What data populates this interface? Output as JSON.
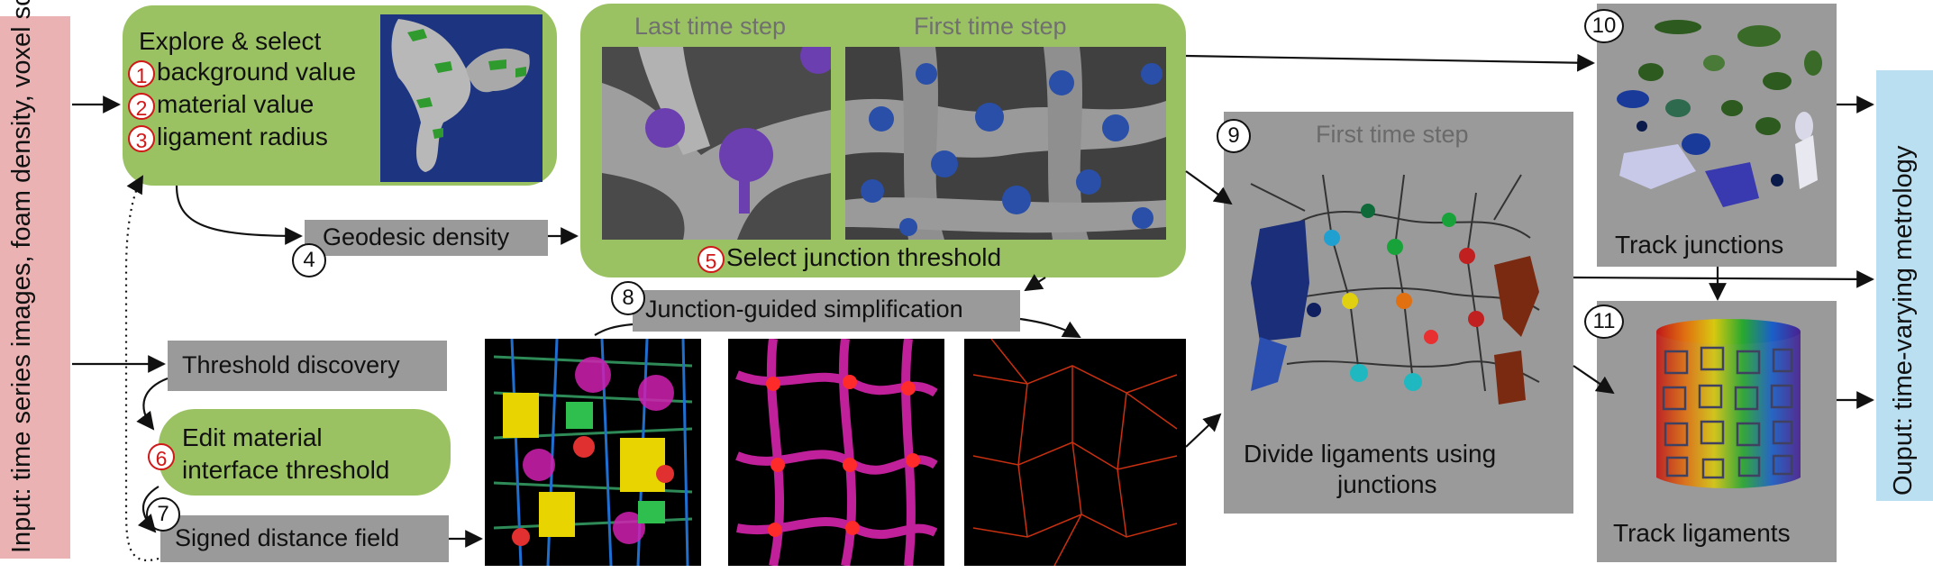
{
  "input_label": "Input: time series images, foam density, voxel scale",
  "output_label": "Ouput: time-varying metrology",
  "step1": {
    "title": "Explore & select",
    "items": [
      {
        "num": "1",
        "label": "background value"
      },
      {
        "num": "2",
        "label": "material value"
      },
      {
        "num": "3",
        "label": "ligament radius"
      }
    ]
  },
  "step4": {
    "num": "4",
    "label": "Geodesic density"
  },
  "step5": {
    "num": "5",
    "label": "Select junction threshold",
    "caption_last": "Last time step",
    "caption_first": "First time step"
  },
  "step6": {
    "num": "6",
    "label_line1": "Edit material",
    "label_line2": "interface threshold"
  },
  "threshold_discovery": "Threshold discovery",
  "step7": {
    "num": "7",
    "label": "Signed distance field"
  },
  "step8": {
    "num": "8",
    "label": "Junction-guided simplification"
  },
  "step9": {
    "num": "9",
    "caption": "First time step",
    "label_line1": "Divide ligaments using",
    "label_line2": "junctions"
  },
  "step10": {
    "num": "10",
    "label": "Track junctions"
  },
  "step11": {
    "num": "11",
    "label": "Track ligaments"
  },
  "colors": {
    "input_bg": "#eab2b2",
    "output_bg": "#b9dff1",
    "green_panel": "#9bc262",
    "gray_box": "#9a9a9a",
    "marker_red": "#d01818"
  }
}
